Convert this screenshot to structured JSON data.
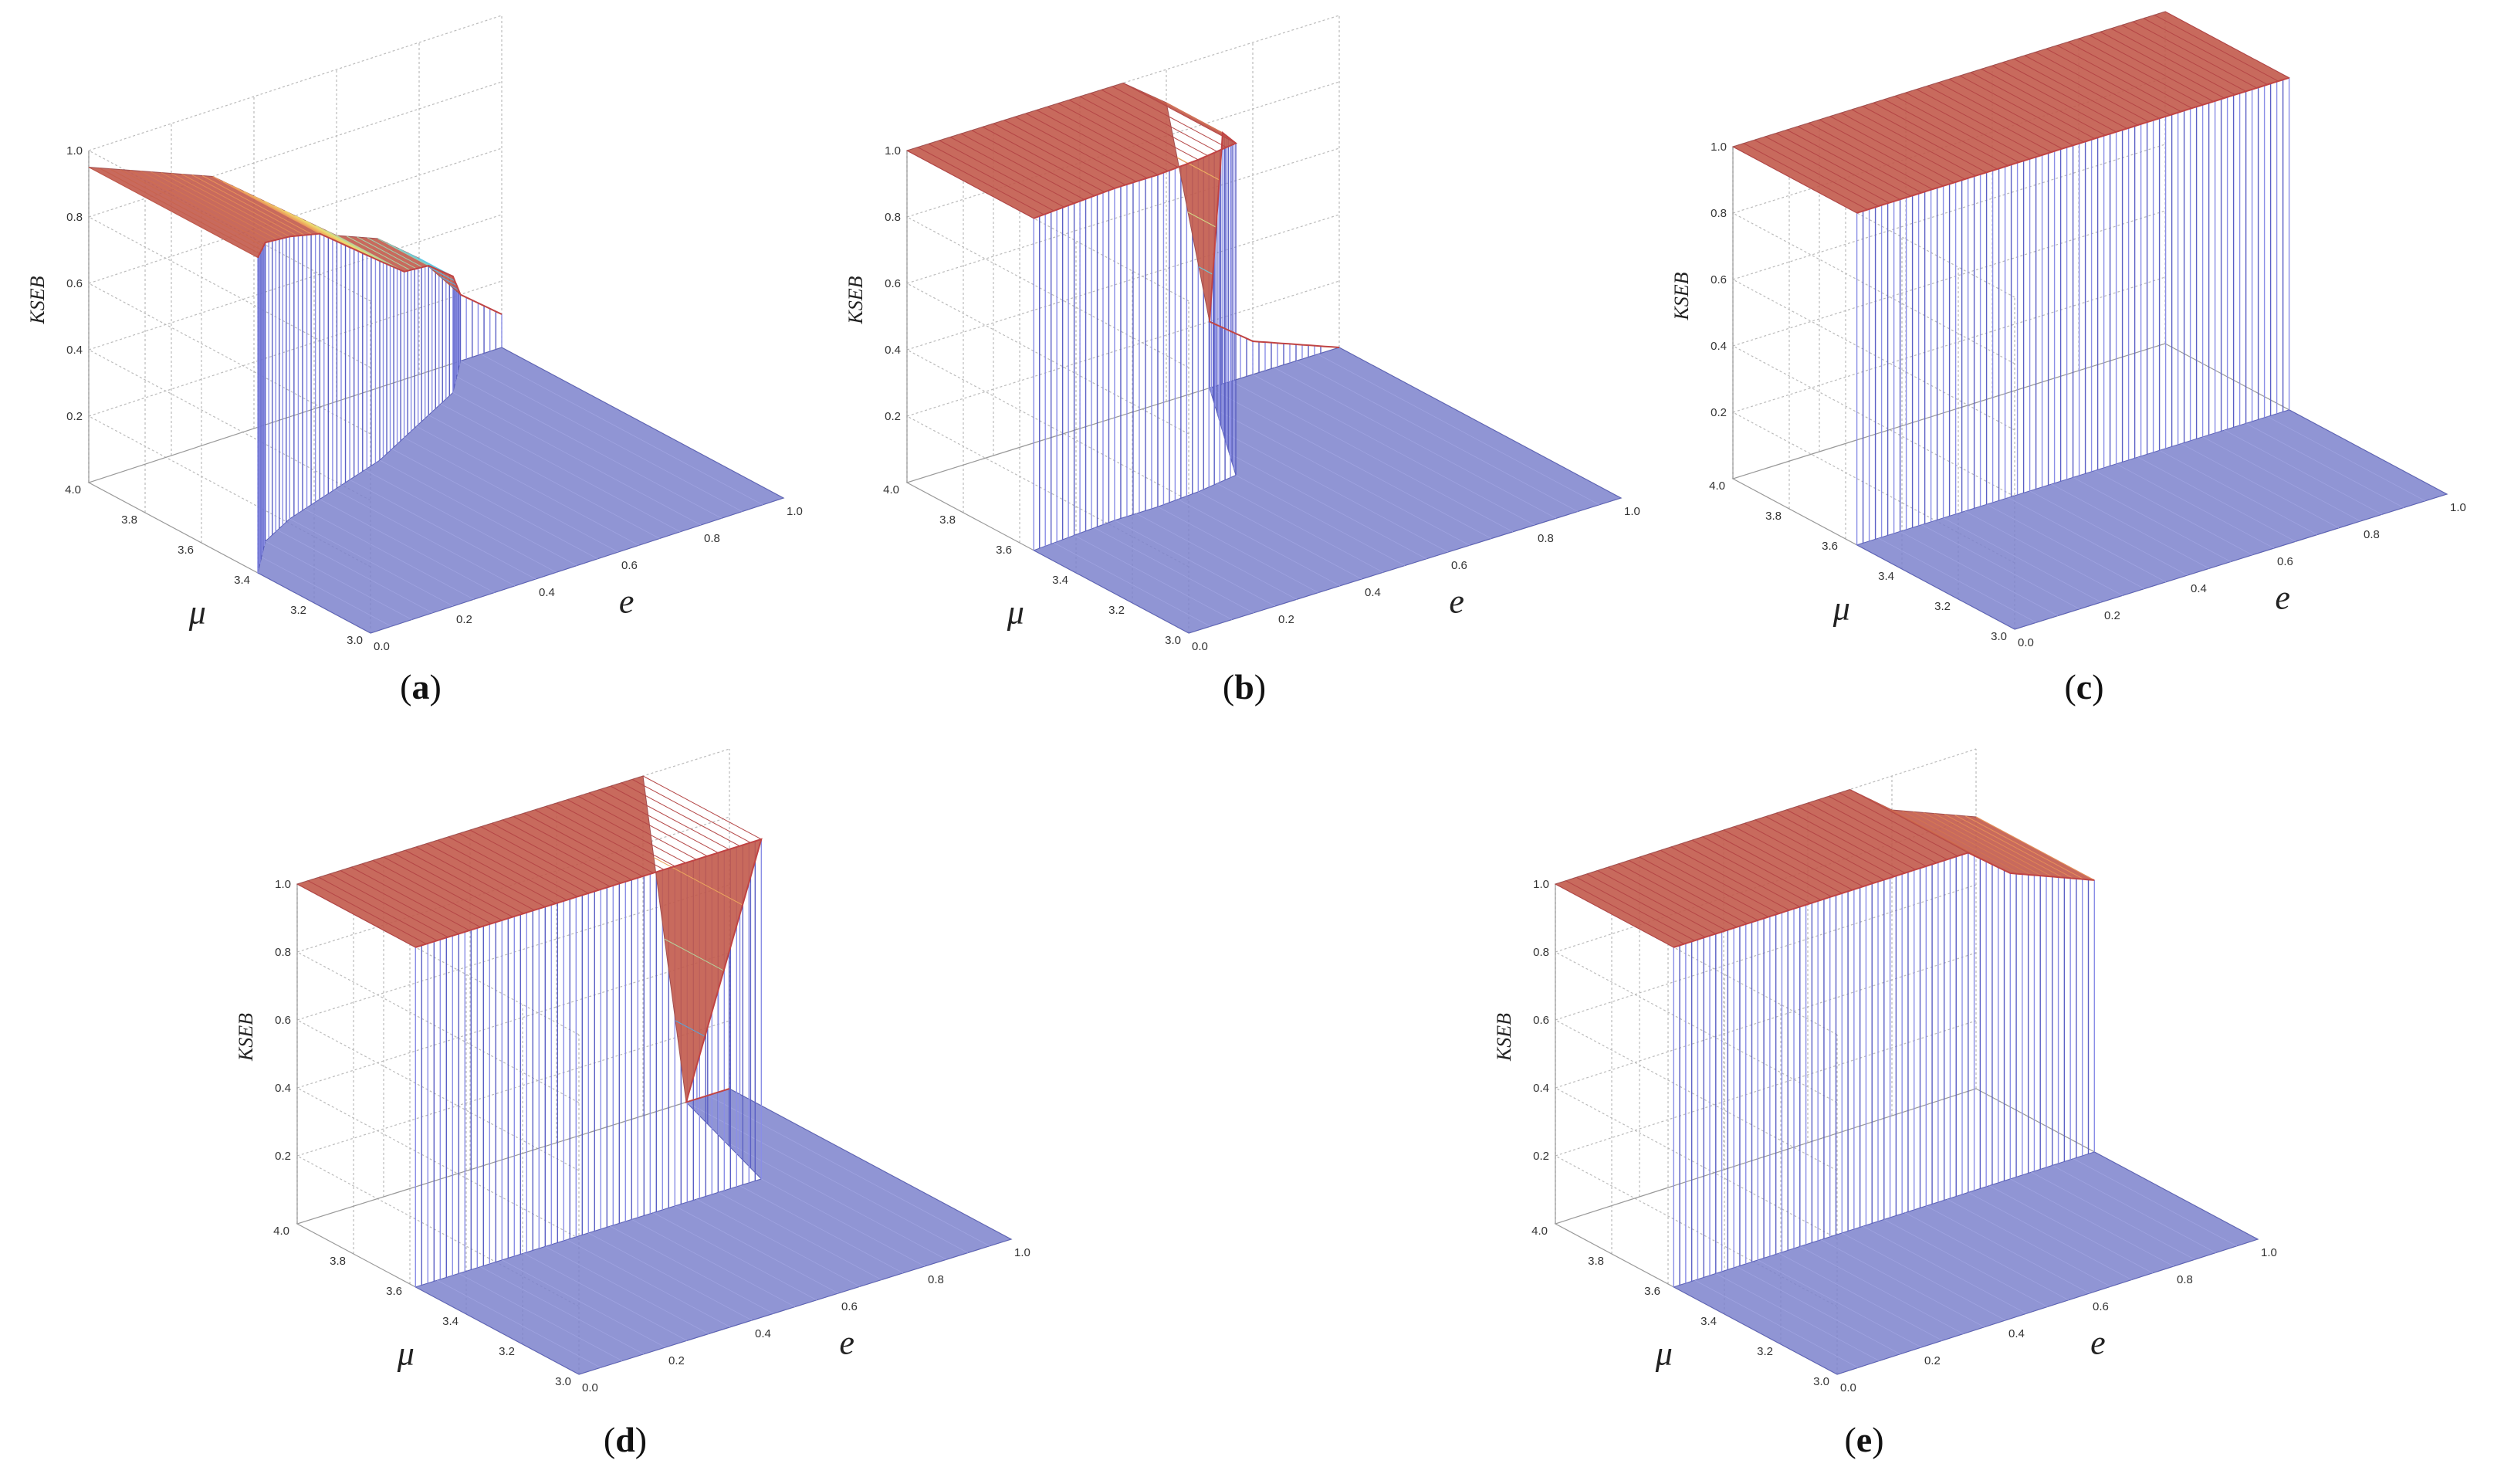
{
  "figure": {
    "panel_order": [
      "a",
      "b",
      "c",
      "d",
      "e"
    ]
  },
  "chart_data": [
    {
      "type": "surface",
      "id": "a",
      "caption_letter": "a",
      "xlabel": "e",
      "ylabel": "μ",
      "zlabel": "KSEB",
      "xlim": [
        0,
        1
      ],
      "ylim": [
        3.0,
        4.0
      ],
      "zlim": [
        0,
        1
      ],
      "x_ticks": [
        "0.0",
        "0.2",
        "0.4",
        "0.6",
        "0.8",
        "1.0"
      ],
      "y_ticks": [
        "3.0",
        "3.2",
        "3.4",
        "3.6",
        "3.8",
        "4.0"
      ],
      "z_ticks": [
        "0.2",
        "0.4",
        "0.6",
        "0.8",
        "1.0"
      ],
      "grid": true,
      "profile": {
        "e": [
          0.0,
          0.1,
          0.2,
          0.3,
          0.4,
          0.5,
          0.6,
          0.7,
          0.8,
          0.9,
          1.0
        ],
        "mu_edge": [
          3.4,
          3.52,
          3.58,
          3.62,
          3.66,
          3.7,
          3.76,
          3.82,
          3.88,
          4.0,
          4.0
        ],
        "plateau_ksed": [
          0.95,
          0.9,
          0.85,
          0.8,
          0.7,
          0.6,
          0.5,
          0.45,
          0.35,
          0.2,
          0.1
        ]
      }
    },
    {
      "type": "surface",
      "id": "b",
      "caption_letter": "b",
      "xlabel": "e",
      "ylabel": "μ",
      "zlabel": "KSEB",
      "xlim": [
        0,
        1
      ],
      "ylim": [
        3.0,
        4.0
      ],
      "zlim": [
        0,
        1
      ],
      "x_ticks": [
        "0.0",
        "0.2",
        "0.4",
        "0.6",
        "0.8",
        "1.0"
      ],
      "y_ticks": [
        "3.0",
        "3.2",
        "3.4",
        "3.6",
        "3.8",
        "4.0"
      ],
      "z_ticks": [
        "0.2",
        "0.4",
        "0.6",
        "0.8",
        "1.0"
      ],
      "grid": true,
      "profile": {
        "e": [
          0.0,
          0.1,
          0.2,
          0.3,
          0.4,
          0.5,
          0.6,
          0.7,
          0.8,
          0.9,
          1.0
        ],
        "mu_edge": [
          3.55,
          3.56,
          3.57,
          3.57,
          3.58,
          3.6,
          3.8,
          4.0,
          4.0,
          4.0,
          4.0
        ],
        "plateau_ksed": [
          1.0,
          1.0,
          1.0,
          1.0,
          1.0,
          1.0,
          0.9,
          0.2,
          0.1,
          0.05,
          0.0
        ]
      }
    },
    {
      "type": "surface",
      "id": "c",
      "caption_letter": "c",
      "xlabel": "e",
      "ylabel": "μ",
      "zlabel": "KSEB",
      "xlim": [
        0,
        1
      ],
      "ylim": [
        3.0,
        4.0
      ],
      "zlim": [
        0,
        1
      ],
      "x_ticks": [
        "0.0",
        "0.2",
        "0.4",
        "0.6",
        "0.8",
        "1.0"
      ],
      "y_ticks": [
        "3.0",
        "3.2",
        "3.4",
        "3.6",
        "3.8",
        "4.0"
      ],
      "z_ticks": [
        "0.2",
        "0.4",
        "0.6",
        "0.8",
        "1.0"
      ],
      "grid": true,
      "profile": {
        "e": [
          0.0,
          0.1,
          0.2,
          0.3,
          0.4,
          0.5,
          0.6,
          0.7,
          0.8,
          0.9,
          1.0
        ],
        "mu_edge": [
          3.56,
          3.56,
          3.56,
          3.56,
          3.56,
          3.56,
          3.56,
          3.56,
          3.56,
          3.56,
          3.56
        ],
        "plateau_ksed": [
          1.0,
          1.0,
          1.0,
          1.0,
          1.0,
          1.0,
          1.0,
          1.0,
          1.0,
          1.0,
          1.0
        ]
      }
    },
    {
      "type": "surface",
      "id": "d",
      "caption_letter": "d",
      "xlabel": "e",
      "ylabel": "μ",
      "zlabel": "KSEB",
      "xlim": [
        0,
        1
      ],
      "ylim": [
        3.0,
        4.0
      ],
      "zlim": [
        0,
        1
      ],
      "x_ticks": [
        "0.0",
        "0.2",
        "0.4",
        "0.6",
        "0.8",
        "1.0"
      ],
      "y_ticks": [
        "3.0",
        "3.2",
        "3.4",
        "3.6",
        "3.8",
        "4.0"
      ],
      "z_ticks": [
        "0.2",
        "0.4",
        "0.6",
        "0.8",
        "1.0"
      ],
      "grid": true,
      "profile": {
        "e": [
          0.0,
          0.1,
          0.2,
          0.3,
          0.4,
          0.5,
          0.6,
          0.7,
          0.8,
          0.9,
          1.0
        ],
        "mu_edge": [
          3.58,
          3.58,
          3.58,
          3.58,
          3.58,
          3.58,
          3.58,
          3.58,
          3.58,
          4.0,
          4.0
        ],
        "plateau_ksed": [
          1.0,
          1.0,
          1.0,
          1.0,
          1.0,
          1.0,
          1.0,
          1.0,
          1.0,
          0.0,
          0.0
        ]
      }
    },
    {
      "type": "surface",
      "id": "e",
      "caption_letter": "e",
      "xlabel": "e",
      "ylabel": "μ",
      "zlabel": "KSEB",
      "xlim": [
        0,
        1
      ],
      "ylim": [
        3.0,
        4.0
      ],
      "zlim": [
        0,
        1
      ],
      "x_ticks": [
        "0.0",
        "0.2",
        "0.4",
        "0.6",
        "0.8",
        "1.0"
      ],
      "y_ticks": [
        "3.0",
        "3.2",
        "3.4",
        "3.6",
        "3.8",
        "4.0"
      ],
      "z_ticks": [
        "0.2",
        "0.4",
        "0.6",
        "0.8",
        "1.0"
      ],
      "grid": true,
      "profile": {
        "e": [
          0.0,
          0.1,
          0.2,
          0.3,
          0.4,
          0.5,
          0.6,
          0.7,
          0.8,
          0.9,
          1.0
        ],
        "mu_edge": [
          3.58,
          3.58,
          3.58,
          3.58,
          3.58,
          3.58,
          3.58,
          3.58,
          3.58,
          3.58,
          3.58
        ],
        "plateau_ksed": [
          1.0,
          1.0,
          1.0,
          1.0,
          1.0,
          1.0,
          1.0,
          1.0,
          0.9,
          0.85,
          0.8
        ]
      }
    }
  ]
}
